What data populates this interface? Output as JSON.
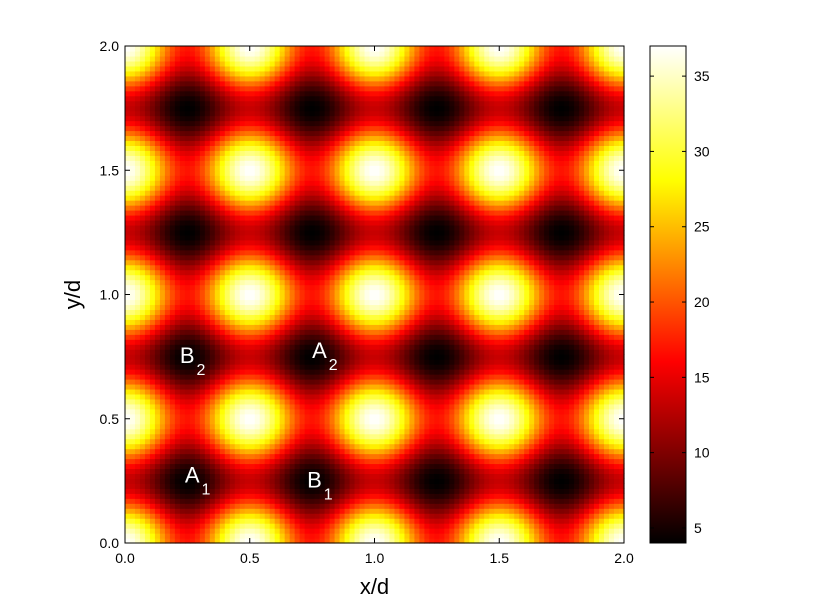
{
  "chart_data": {
    "type": "heatmap",
    "title": "",
    "xlabel": "x/d",
    "ylabel": "y/d",
    "xlim": [
      0,
      2
    ],
    "ylim": [
      0,
      2
    ],
    "x_ticks": [
      "0.0",
      "0.5",
      "1.0",
      "1.5",
      "2.0"
    ],
    "y_ticks": [
      "0.0",
      "0.5",
      "1.0",
      "1.5",
      "2.0"
    ],
    "colorbar": {
      "range": [
        4,
        37
      ],
      "ticks": [
        "5",
        "10",
        "15",
        "20",
        "25",
        "30",
        "35"
      ],
      "colormap": "hot"
    },
    "field": {
      "minima": [
        {
          "x": 0.25,
          "y": 0.25
        },
        {
          "x": 0.75,
          "y": 0.25
        },
        {
          "x": 1.25,
          "y": 0.25
        },
        {
          "x": 1.75,
          "y": 0.25
        },
        {
          "x": 0.25,
          "y": 0.75
        },
        {
          "x": 0.75,
          "y": 0.75
        },
        {
          "x": 1.25,
          "y": 0.75
        },
        {
          "x": 1.75,
          "y": 0.75
        },
        {
          "x": 0.25,
          "y": 1.25
        },
        {
          "x": 0.75,
          "y": 1.25
        },
        {
          "x": 1.25,
          "y": 1.25
        },
        {
          "x": 1.75,
          "y": 1.25
        },
        {
          "x": 0.25,
          "y": 1.75
        },
        {
          "x": 0.75,
          "y": 1.75
        },
        {
          "x": 1.25,
          "y": 1.75
        },
        {
          "x": 1.75,
          "y": 1.75
        }
      ],
      "maxima": [
        {
          "x": 0.0,
          "y": 0.0
        },
        {
          "x": 0.5,
          "y": 0.0
        },
        {
          "x": 1.0,
          "y": 0.0
        },
        {
          "x": 1.5,
          "y": 0.0
        },
        {
          "x": 2.0,
          "y": 0.0
        },
        {
          "x": 0.0,
          "y": 0.5
        },
        {
          "x": 0.5,
          "y": 0.5
        },
        {
          "x": 1.0,
          "y": 0.5
        },
        {
          "x": 1.5,
          "y": 0.5
        },
        {
          "x": 2.0,
          "y": 0.5
        },
        {
          "x": 0.0,
          "y": 1.0
        },
        {
          "x": 0.5,
          "y": 1.0
        },
        {
          "x": 1.0,
          "y": 1.0
        },
        {
          "x": 1.5,
          "y": 1.0
        },
        {
          "x": 2.0,
          "y": 1.0
        },
        {
          "x": 0.0,
          "y": 1.5
        },
        {
          "x": 0.5,
          "y": 1.5
        },
        {
          "x": 1.0,
          "y": 1.5
        },
        {
          "x": 1.5,
          "y": 1.5
        },
        {
          "x": 2.0,
          "y": 1.5
        },
        {
          "x": 0.0,
          "y": 2.0
        },
        {
          "x": 0.5,
          "y": 2.0
        },
        {
          "x": 1.0,
          "y": 2.0
        },
        {
          "x": 1.5,
          "y": 2.0
        },
        {
          "x": 2.0,
          "y": 2.0
        }
      ],
      "min_value": 4,
      "max_value": 37
    },
    "annotations": [
      {
        "main": "A",
        "sub": "1",
        "x": 0.28,
        "y": 0.26
      },
      {
        "main": "B",
        "sub": "1",
        "x": 0.77,
        "y": 0.24
      },
      {
        "main": "B",
        "sub": "2",
        "x": 0.26,
        "y": 0.74
      },
      {
        "main": "A",
        "sub": "2",
        "x": 0.79,
        "y": 0.76
      }
    ],
    "grid": false
  }
}
